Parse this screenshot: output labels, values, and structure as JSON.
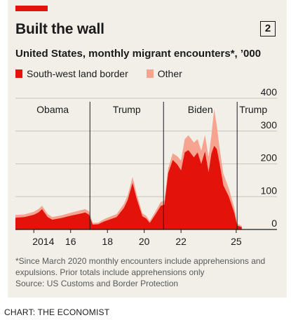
{
  "header": {
    "title": "Built the wall",
    "number": "2",
    "subtitle": "United States, monthly migrant encounters*, ’000"
  },
  "legend": [
    {
      "label": "South-west land border",
      "color": "#e3120b"
    },
    {
      "label": "Other",
      "color": "#f6a38f"
    }
  ],
  "footnote": "*Since March 2020 monthly encounters include apprehensions and expulsions. Prior totals include apprehensions only",
  "source": "Source: US Customs and Border Protection",
  "credit": "CHART: THE ECONOMIST",
  "chart_data": {
    "type": "area",
    "title": "Built the wall",
    "subtitle": "United States, monthly migrant encounters*, ’000",
    "ylim": [
      0,
      400
    ],
    "yticks": [
      0,
      100,
      200,
      300,
      400
    ],
    "xlim": [
      2013.0,
      2025.5
    ],
    "xticks": [
      {
        "value": 2014,
        "label": "2014"
      },
      {
        "value": 2016,
        "label": "16"
      },
      {
        "value": 2018,
        "label": "18"
      },
      {
        "value": 2020,
        "label": "20"
      },
      {
        "value": 2022,
        "label": "22"
      },
      {
        "value": 2025,
        "label": "25"
      }
    ],
    "grid": "horizontal",
    "stacked": true,
    "periods": [
      {
        "label": "Obama",
        "start": 2013.0,
        "end": 2017.05
      },
      {
        "label": "Trump",
        "start": 2017.05,
        "end": 2021.05
      },
      {
        "label": "Biden",
        "start": 2021.05,
        "end": 2025.05
      },
      {
        "label": "Trump",
        "start": 2025.05,
        "end": 2025.5
      }
    ],
    "x": [
      2013.0,
      2013.5,
      2014.0,
      2014.25,
      2014.45,
      2014.75,
      2015.0,
      2015.5,
      2016.0,
      2016.5,
      2016.8,
      2017.0,
      2017.2,
      2017.5,
      2017.8,
      2018.0,
      2018.5,
      2018.9,
      2019.1,
      2019.37,
      2019.6,
      2019.9,
      2020.1,
      2020.3,
      2020.6,
      2020.9,
      2021.1,
      2021.3,
      2021.55,
      2021.8,
      2022.0,
      2022.2,
      2022.4,
      2022.7,
      2022.9,
      2023.1,
      2023.3,
      2023.5,
      2023.65,
      2023.8,
      2023.95,
      2024.1,
      2024.3,
      2024.6,
      2024.9,
      2025.05,
      2025.3
    ],
    "series": [
      {
        "name": "South-west land border",
        "color": "#e3120b",
        "values": [
          36,
          38,
          45,
          52,
          62,
          38,
          30,
          35,
          42,
          48,
          52,
          45,
          15,
          16,
          24,
          28,
          38,
          66,
          90,
          142,
          92,
          40,
          34,
          20,
          45,
          72,
          76,
          172,
          212,
          198,
          180,
          235,
          242,
          220,
          235,
          200,
          238,
          175,
          232,
          255,
          245,
          200,
          135,
          100,
          50,
          12,
          7
        ]
      },
      {
        "name": "Other",
        "color": "#f6a38f",
        "values": [
          8,
          8,
          9,
          10,
          10,
          9,
          8,
          8,
          9,
          10,
          10,
          10,
          5,
          5,
          7,
          8,
          9,
          12,
          14,
          18,
          14,
          9,
          8,
          6,
          9,
          12,
          12,
          14,
          20,
          25,
          30,
          40,
          45,
          45,
          40,
          40,
          50,
          45,
          55,
          112,
          70,
          45,
          35,
          25,
          15,
          6,
          4
        ]
      }
    ]
  }
}
